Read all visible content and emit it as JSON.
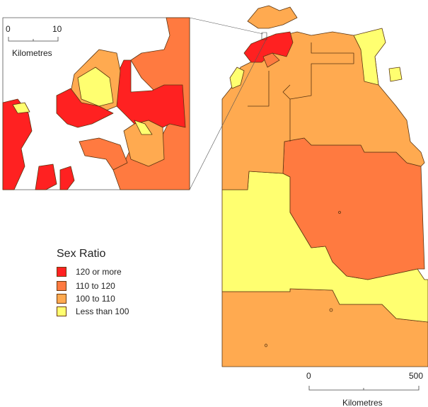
{
  "legend": {
    "title": "Sex Ratio",
    "items": [
      {
        "label": "120 or more",
        "color": "#ff2121"
      },
      {
        "label": "110 to 120",
        "color": "#ff7a40"
      },
      {
        "label": "100 to 110",
        "color": "#ffaa50"
      },
      {
        "label": "Less than 100",
        "color": "#ffff70"
      }
    ]
  },
  "inset_scale": {
    "start": "0",
    "end": "10",
    "unit": "Kilometres"
  },
  "main_scale": {
    "start": "0",
    "end": "500",
    "unit": "Kilometres"
  }
}
